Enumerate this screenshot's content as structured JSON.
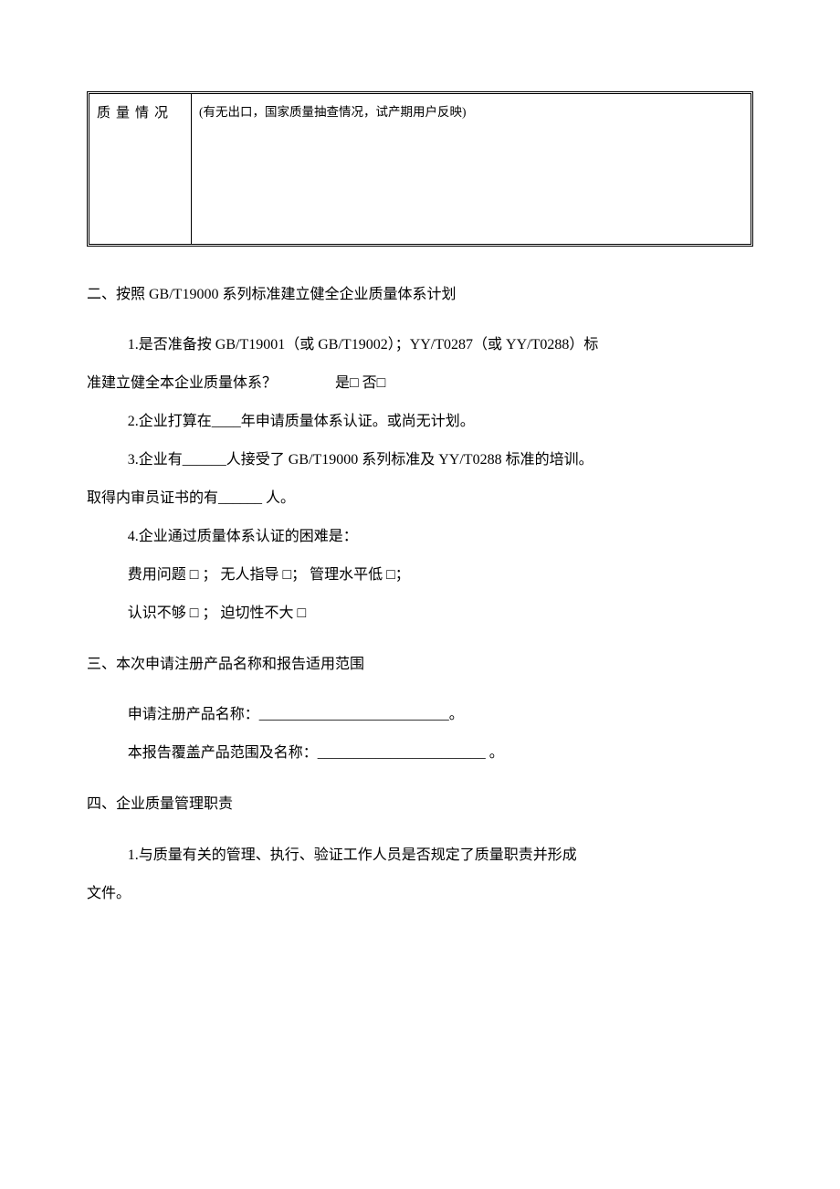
{
  "table": {
    "left_label": "质量情况",
    "right_note": "(有无出口，国家质量抽查情况，试产期用户反映)"
  },
  "section2": {
    "heading": "二、按照 GB/T19000 系列标准建立健全企业质量体系计划",
    "item1_a": "1.是否准备按 GB/T19001（或 GB/T19002）；YY/T0287（或 YY/T0288）标",
    "item1_b": "准建立健全本企业质量体系？                是□ 否□",
    "item2": "2.企业打算在____年申请质量体系认证。或尚无计划。",
    "item3_a": "3.企业有______人接受了 GB/T19000 系列标准及 YY/T0288 标准的培训。",
    "item3_b": "取得内审员证书的有______ 人。",
    "item4": "4.企业通过质量体系认证的困难是：",
    "item4_opts1": "费用问题 □ ； 无人指导 □； 管理水平低 □；",
    "item4_opts2": "认识不够 □ ； 迫切性不大 □"
  },
  "section3": {
    "heading": "三、本次申请注册产品名称和报告适用范围",
    "line1": "申请注册产品名称：__________________________。",
    "line2": "本报告覆盖产品范围及名称：_______________________ 。"
  },
  "section4": {
    "heading": "四、企业质量管理职责",
    "item1_a": "1.与质量有关的管理、执行、验证工作人员是否规定了质量职责并形成",
    "item1_b": "文件。"
  },
  "colors": {
    "text": "#000000",
    "background": "#ffffff",
    "border": "#000000"
  },
  "fonts": {
    "body_family": "SimSun",
    "body_size_pt": 12,
    "line_height": 2.5
  }
}
